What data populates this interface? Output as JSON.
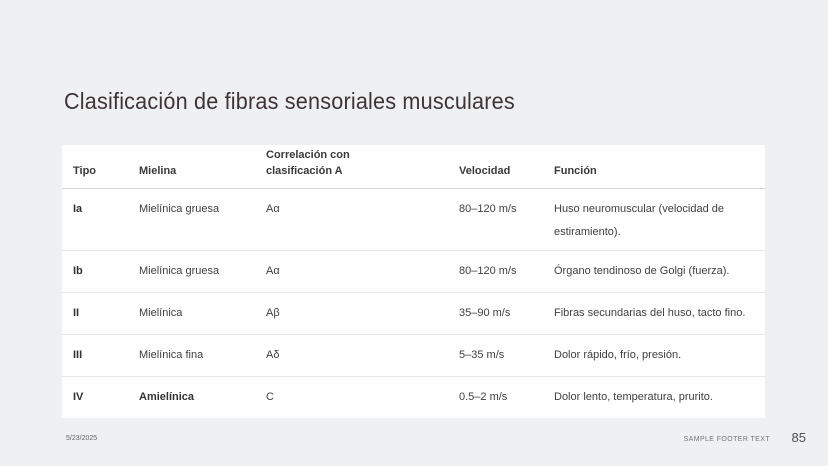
{
  "slide": {
    "title": "Clasificación de fibras sensoriales musculares",
    "footer": {
      "date": "5/23/2025",
      "footer_text": "SAMPLE FOOTER TEXT",
      "page_number": "85"
    }
  },
  "table": {
    "columns": [
      "Tipo",
      "Mielina",
      "Correlación con clasificación A",
      "Velocidad",
      "Función"
    ],
    "rows": [
      {
        "tipo": "Ia",
        "mielina": "Mielínica gruesa",
        "correlacion": "Aα",
        "velocidad": "80–120 m/s",
        "funcion": "Huso neuromuscular (velocidad de estiramiento)."
      },
      {
        "tipo": "Ib",
        "mielina": "Mielínica gruesa",
        "correlacion": "Aα",
        "velocidad": "80–120 m/s",
        "funcion": "Órgano tendinoso de Golgi (fuerza)."
      },
      {
        "tipo": "II",
        "mielina": "Mielínica",
        "correlacion": "Aβ",
        "velocidad": "35–90 m/s",
        "funcion": "Fibras secundarias del huso, tacto fino."
      },
      {
        "tipo": "III",
        "mielina": "Mielínica fina",
        "correlacion": "Aδ",
        "velocidad": "5–35 m/s",
        "funcion": "Dolor rápido, frío, presión."
      },
      {
        "tipo": "IV",
        "mielina": "Amielínica",
        "correlacion": "C",
        "velocidad": "0.5–2 m/s",
        "funcion": "Dolor lento, temperatura, prurito."
      }
    ]
  },
  "colors": {
    "background": "#eff0f2",
    "card": "#fefefe",
    "title_text": "#3e3436",
    "body_text": "#404040",
    "separator": "#e9e9e9",
    "header_separator": "#d4d4d4",
    "footer_text": "#757575"
  }
}
